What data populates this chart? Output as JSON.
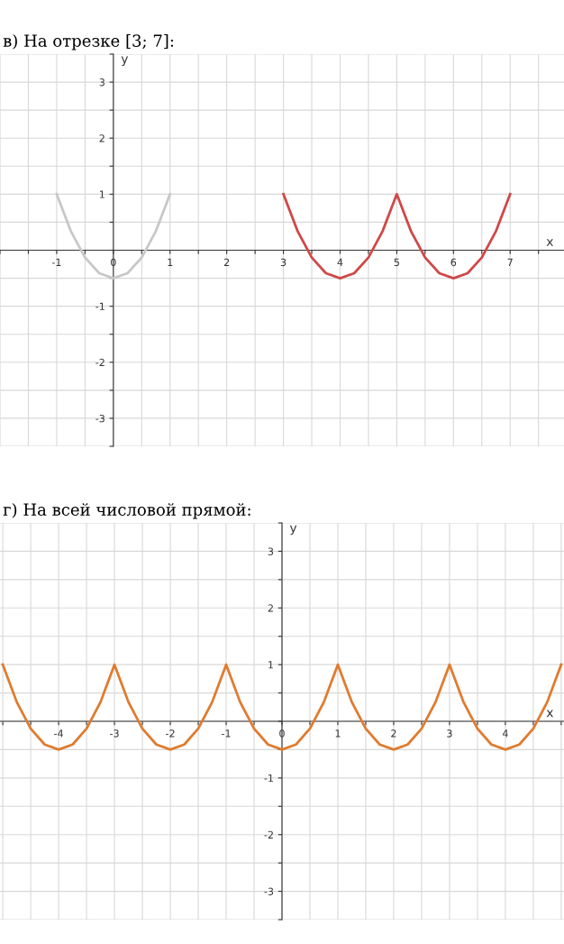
{
  "chart_data": [
    {
      "type": "line",
      "title": "в) На отрезке [3; 7]:",
      "xlabel": "x",
      "ylabel": "y",
      "grid": true,
      "legend": false,
      "marker": "none",
      "line_style": "solid",
      "xlim": [
        -2,
        7.95
      ],
      "ylim": [
        -3.5,
        3.5
      ],
      "xticks": [
        {
          "value": -2,
          "label": null
        },
        {
          "value": -1.5,
          "label": null
        },
        -1,
        {
          "value": -0.5,
          "label": null
        },
        0,
        {
          "value": 0.5,
          "label": null
        },
        1,
        {
          "value": 1.5,
          "label": null
        },
        2,
        {
          "value": 2.5,
          "label": null
        },
        3,
        {
          "value": 3.5,
          "label": null
        },
        4,
        {
          "value": 4.5,
          "label": null
        },
        5,
        {
          "value": 5.5,
          "label": null
        },
        6,
        {
          "value": 6.5,
          "label": null
        },
        7,
        {
          "value": 7.5,
          "label": null
        }
      ],
      "yticks": [
        {
          "value": -3.5,
          "label": null
        },
        -3,
        {
          "value": -2.5,
          "label": null
        },
        -2,
        {
          "value": -1.5,
          "label": null
        },
        -1,
        {
          "value": -0.5,
          "label": null
        },
        {
          "value": 0,
          "label": null
        },
        {
          "value": 0.5,
          "label": null
        },
        1,
        {
          "value": 1.5,
          "label": null
        },
        2,
        {
          "value": 2.5,
          "label": null
        },
        3,
        {
          "value": 3.5,
          "label": null
        }
      ],
      "series": [
        {
          "color": "#c8c8c8",
          "x": [
            -1,
            -0.75,
            -0.5,
            -0.25,
            0,
            0.25,
            0.5,
            0.75,
            1
          ],
          "values": [
            1,
            0.34,
            -0.13,
            -0.41,
            -0.5,
            -0.41,
            -0.13,
            0.34,
            1
          ]
        },
        {
          "color": "#d04848",
          "x": [
            3,
            3.25,
            3.5,
            3.75,
            4,
            4.25,
            4.5,
            4.75,
            5,
            5.25,
            5.5,
            5.75,
            6,
            6.25,
            6.5,
            6.75,
            7
          ],
          "values": [
            1,
            0.34,
            -0.13,
            -0.41,
            -0.5,
            -0.41,
            -0.13,
            0.34,
            1,
            0.34,
            -0.13,
            -0.41,
            -0.5,
            -0.41,
            -0.13,
            0.34,
            1
          ]
        }
      ]
    },
    {
      "type": "line",
      "title": "г) На всей числовой прямой:",
      "xlabel": "x",
      "ylabel": "y",
      "grid": true,
      "legend": false,
      "marker": "none",
      "line_style": "solid",
      "xlim": [
        -5.05,
        5.05
      ],
      "ylim": [
        -3.5,
        3.5
      ],
      "xticks": [
        {
          "value": -5,
          "label": null
        },
        {
          "value": -4.5,
          "label": null
        },
        -4,
        {
          "value": -3.5,
          "label": null
        },
        -3,
        {
          "value": -2.5,
          "label": null
        },
        -2,
        {
          "value": -1.5,
          "label": null
        },
        -1,
        {
          "value": -0.5,
          "label": null
        },
        0,
        {
          "value": 0.5,
          "label": null
        },
        1,
        {
          "value": 1.5,
          "label": null
        },
        2,
        {
          "value": 2.5,
          "label": null
        },
        3,
        {
          "value": 3.5,
          "label": null
        },
        4,
        {
          "value": 4.5,
          "label": null
        },
        {
          "value": 5,
          "label": null
        }
      ],
      "yticks": [
        {
          "value": -3.5,
          "label": null
        },
        -3,
        {
          "value": -2.5,
          "label": null
        },
        -2,
        {
          "value": -1.5,
          "label": null
        },
        -1,
        {
          "value": -0.5,
          "label": null
        },
        {
          "value": 0,
          "label": null
        },
        {
          "value": 0.5,
          "label": null
        },
        1,
        {
          "value": 1.5,
          "label": null
        },
        2,
        {
          "value": 2.5,
          "label": null
        },
        3,
        {
          "value": 3.5,
          "label": null
        }
      ],
      "series": [
        {
          "color": "#e07b2f",
          "x": [
            -5,
            -4.75,
            -4.5,
            -4.25,
            -4,
            -3.75,
            -3.5,
            -3.25,
            -3,
            -2.75,
            -2.5,
            -2.25,
            -2,
            -1.75,
            -1.5,
            -1.25,
            -1,
            -0.75,
            -0.5,
            -0.25,
            0,
            0.25,
            0.5,
            0.75,
            1,
            1.25,
            1.5,
            1.75,
            2,
            2.25,
            2.5,
            2.75,
            3,
            3.25,
            3.5,
            3.75,
            4,
            4.25,
            4.5,
            4.75,
            5
          ],
          "values": [
            1,
            0.34,
            -0.13,
            -0.41,
            -0.5,
            -0.41,
            -0.13,
            0.34,
            1,
            0.34,
            -0.13,
            -0.41,
            -0.5,
            -0.41,
            -0.13,
            0.34,
            1,
            0.34,
            -0.13,
            -0.41,
            -0.5,
            -0.41,
            -0.13,
            0.34,
            1,
            0.34,
            -0.13,
            -0.41,
            -0.5,
            -0.41,
            -0.13,
            0.34,
            1,
            0.34,
            -0.13,
            -0.41,
            -0.5,
            -0.41,
            -0.13,
            0.34,
            1
          ]
        }
      ]
    }
  ]
}
